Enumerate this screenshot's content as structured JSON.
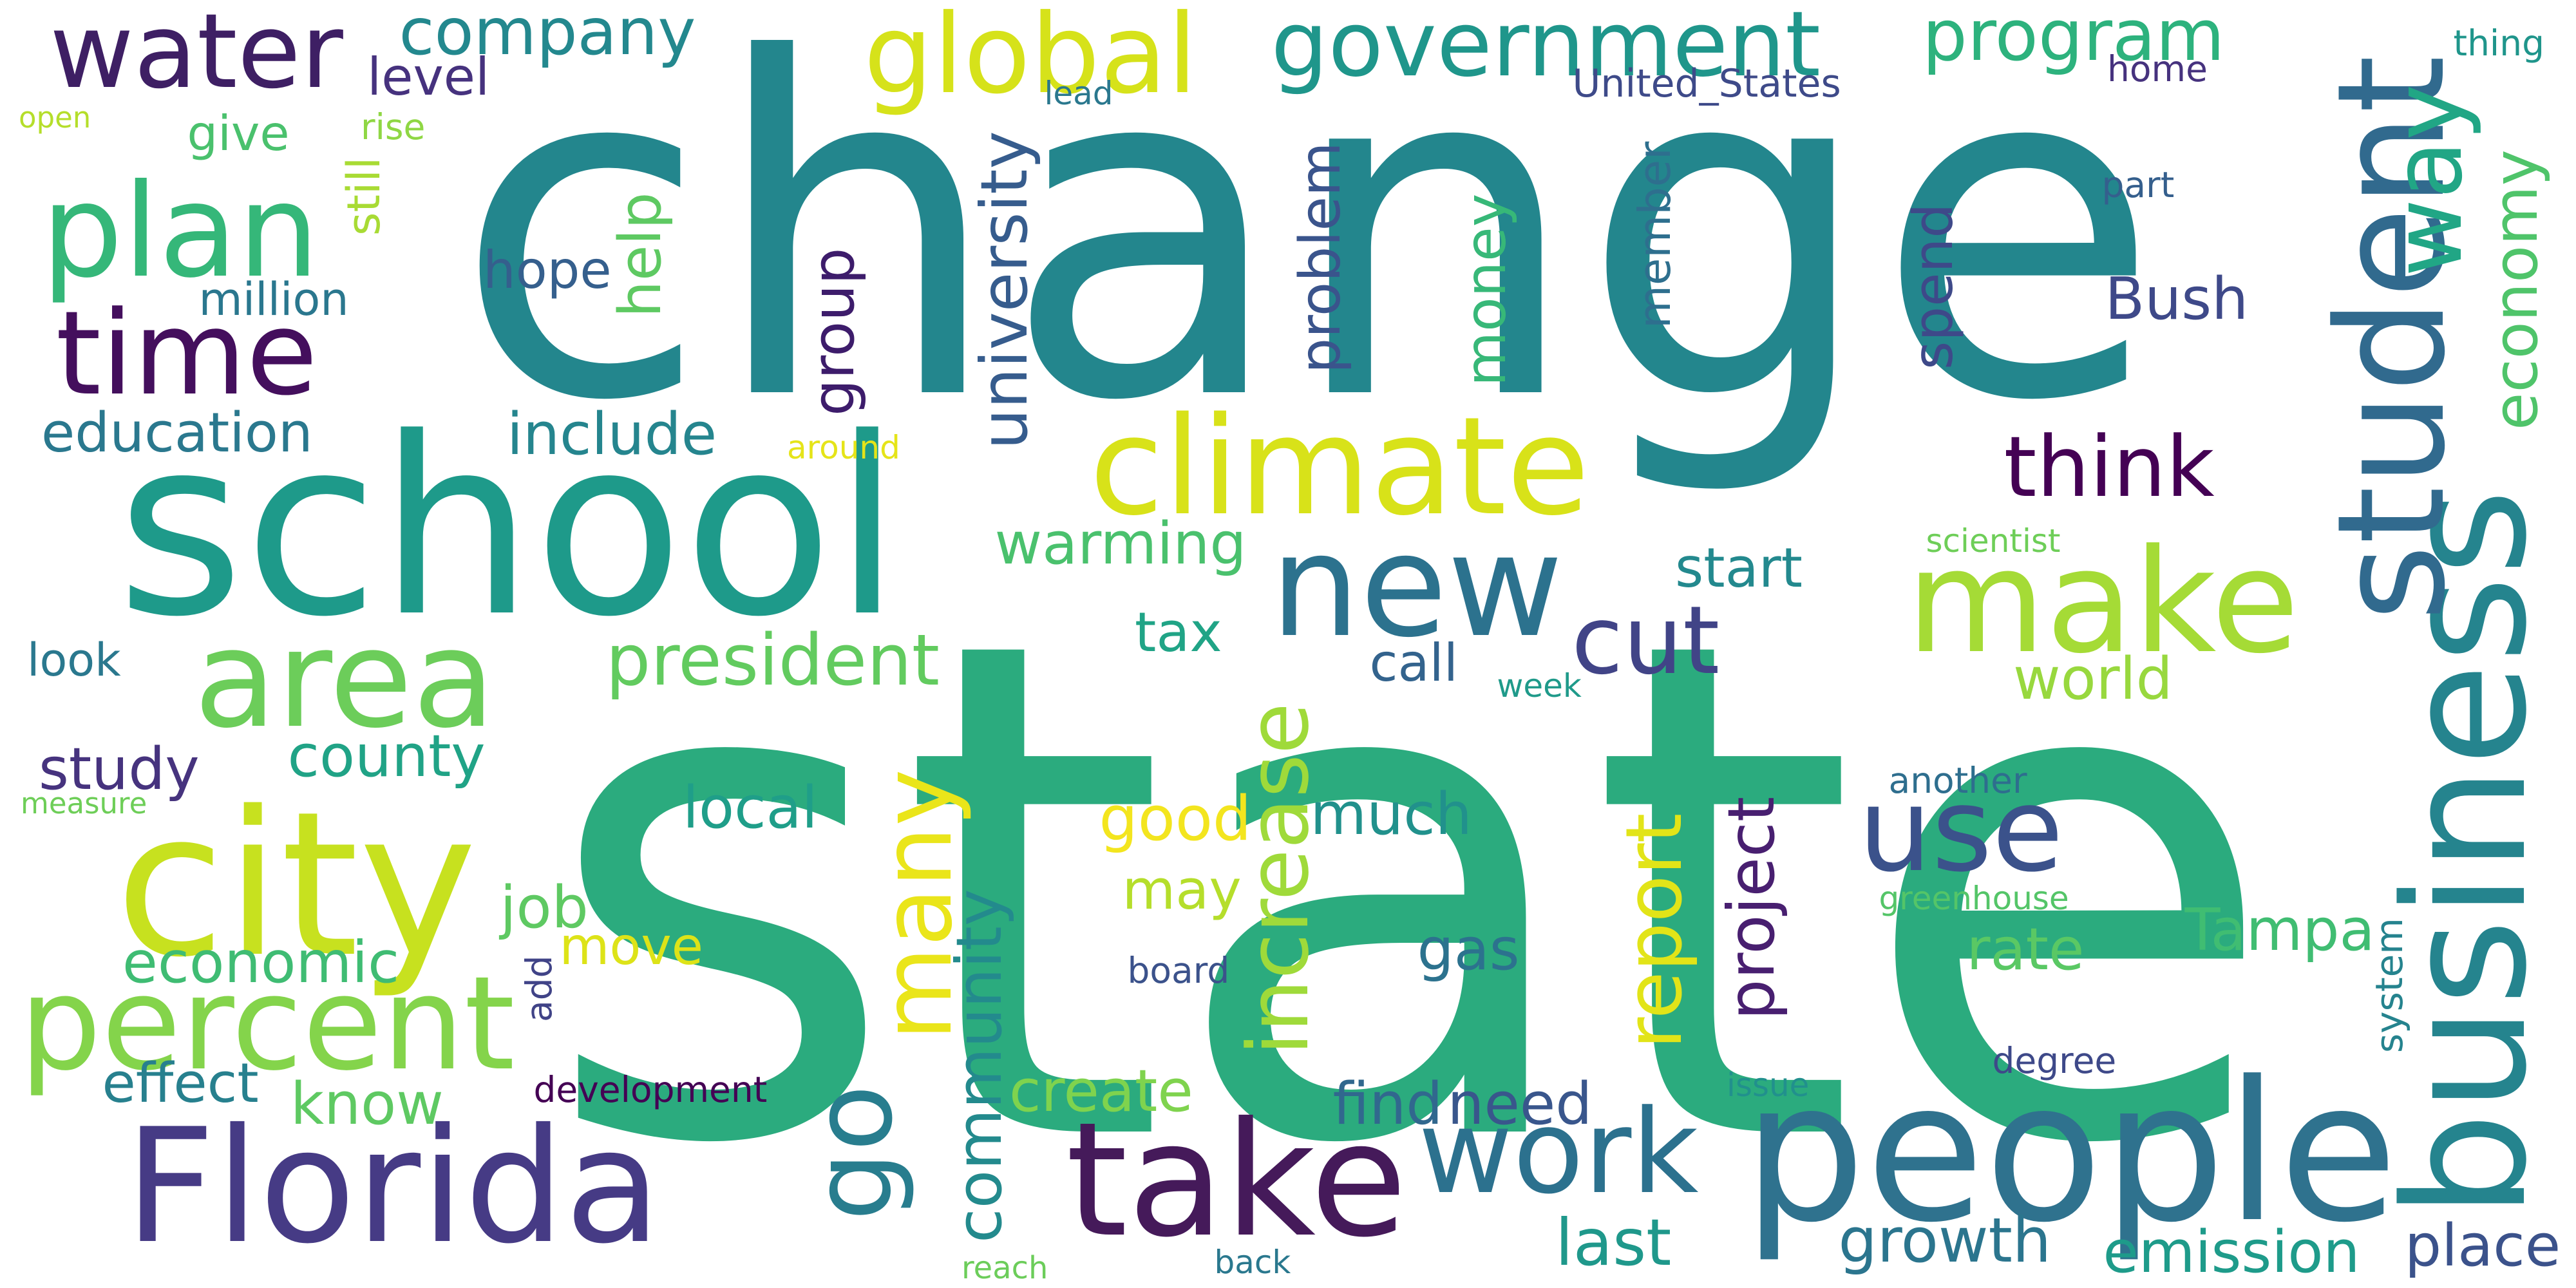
{
  "words": [
    {
      "text": "change",
      "color": "#23868d",
      "rotated": false
    },
    {
      "text": "state",
      "color": "#2bab7e",
      "rotated": false
    },
    {
      "text": "school",
      "color": "#1e9a8a",
      "rotated": false
    },
    {
      "text": "Florida",
      "color": "#463b85",
      "rotated": false
    },
    {
      "text": "people",
      "color": "#2f728e",
      "rotated": false
    },
    {
      "text": "business",
      "color": "#25848e",
      "rotated": true
    },
    {
      "text": "student",
      "color": "#316a8e",
      "rotated": true
    },
    {
      "text": "take",
      "color": "#451a5a",
      "rotated": false
    },
    {
      "text": "city",
      "color": "#c7e11f",
      "rotated": false
    },
    {
      "text": "climate",
      "color": "#d8e219",
      "rotated": false
    },
    {
      "text": "new",
      "color": "#2c728e",
      "rotated": false
    },
    {
      "text": "make",
      "color": "#a5db36",
      "rotated": false
    },
    {
      "text": "area",
      "color": "#6ccd5a",
      "rotated": false
    },
    {
      "text": "percent",
      "color": "#84d44b",
      "rotated": false
    },
    {
      "text": "go",
      "color": "#287d8e",
      "rotated": true
    },
    {
      "text": "many",
      "color": "#eae51a",
      "rotated": true
    },
    {
      "text": "plan",
      "color": "#35b779",
      "rotated": false
    },
    {
      "text": "time",
      "color": "#440f5d",
      "rotated": false
    },
    {
      "text": "water",
      "color": "#3e1f64",
      "rotated": false
    },
    {
      "text": "use",
      "color": "#3b528b",
      "rotated": false
    },
    {
      "text": "work",
      "color": "#2c718e",
      "rotated": false
    },
    {
      "text": "way",
      "color": "#21a685",
      "rotated": true
    },
    {
      "text": "increase",
      "color": "#9fda3a",
      "rotated": true
    },
    {
      "text": "government",
      "color": "#1f968b",
      "rotated": false
    },
    {
      "text": "program",
      "color": "#2db27d",
      "rotated": false
    },
    {
      "text": "global",
      "color": "#d6e21a",
      "rotated": false
    },
    {
      "text": "company",
      "color": "#23888e",
      "rotated": false
    },
    {
      "text": "think",
      "color": "#440154",
      "rotated": false
    },
    {
      "text": "cut",
      "color": "#414487",
      "rotated": false
    },
    {
      "text": "report",
      "color": "#e2e418",
      "rotated": true
    },
    {
      "text": "community",
      "color": "#238a8d",
      "rotated": true
    },
    {
      "text": "president",
      "color": "#62cb5f",
      "rotated": false
    },
    {
      "text": "warming",
      "color": "#4ac16d",
      "rotated": false
    },
    {
      "text": "include",
      "color": "#25858e",
      "rotated": false
    },
    {
      "text": "education",
      "color": "#2a788e",
      "rotated": false
    },
    {
      "text": "university",
      "color": "#365c8d",
      "rotated": true
    },
    {
      "text": "county",
      "color": "#20a386",
      "rotated": false
    },
    {
      "text": "study",
      "color": "#46337e",
      "rotated": false
    },
    {
      "text": "local",
      "color": "#1f9e89",
      "rotated": false
    },
    {
      "text": "job",
      "color": "#5ec962",
      "rotated": false
    },
    {
      "text": "economic",
      "color": "#3fbc73",
      "rotated": false
    },
    {
      "text": "move",
      "color": "#dde318",
      "rotated": false
    },
    {
      "text": "effect",
      "color": "#27808e",
      "rotated": false
    },
    {
      "text": "know",
      "color": "#5ec962",
      "rotated": false
    },
    {
      "text": "create",
      "color": "#7fd34e",
      "rotated": false
    },
    {
      "text": "find",
      "color": "#31688e",
      "rotated": false
    },
    {
      "text": "need",
      "color": "#39568c",
      "rotated": false
    },
    {
      "text": "last",
      "color": "#1f988b",
      "rotated": false
    },
    {
      "text": "growth",
      "color": "#2b758e",
      "rotated": false
    },
    {
      "text": "emission",
      "color": "#1e9b8a",
      "rotated": false
    },
    {
      "text": "place",
      "color": "#3b528b",
      "rotated": false
    },
    {
      "text": "rate",
      "color": "#5ac864",
      "rotated": false
    },
    {
      "text": "Tampa",
      "color": "#40bd72",
      "rotated": false
    },
    {
      "text": "world",
      "color": "#98d83e",
      "rotated": false
    },
    {
      "text": "much",
      "color": "#21918c",
      "rotated": false
    },
    {
      "text": "good",
      "color": "#f3e51e",
      "rotated": false
    },
    {
      "text": "may",
      "color": "#b5de2b",
      "rotated": false
    },
    {
      "text": "gas",
      "color": "#2c728e",
      "rotated": false
    },
    {
      "text": "project",
      "color": "#481f70",
      "rotated": true
    },
    {
      "text": "tax",
      "color": "#20a486",
      "rotated": false
    },
    {
      "text": "call",
      "color": "#33638d",
      "rotated": false
    },
    {
      "text": "start",
      "color": "#23898e",
      "rotated": false
    },
    {
      "text": "Bush",
      "color": "#3e4989",
      "rotated": false
    },
    {
      "text": "problem",
      "color": "#3a548c",
      "rotated": true
    },
    {
      "text": "money",
      "color": "#37b878",
      "rotated": true
    },
    {
      "text": "member",
      "color": "#2e6f8e",
      "rotated": true
    },
    {
      "text": "spend",
      "color": "#3e4989",
      "rotated": true
    },
    {
      "text": "economy",
      "color": "#4fc46a",
      "rotated": true
    },
    {
      "text": "group",
      "color": "#3d1c6b",
      "rotated": true
    },
    {
      "text": "hope",
      "color": "#355f8d",
      "rotated": false
    },
    {
      "text": "help",
      "color": "#5ec962",
      "rotated": true
    },
    {
      "text": "million",
      "color": "#2a778e",
      "rotated": false
    },
    {
      "text": "give",
      "color": "#4ac16d",
      "rotated": false
    },
    {
      "text": "level",
      "color": "#46327e",
      "rotated": false
    },
    {
      "text": "look",
      "color": "#2a788e",
      "rotated": false
    },
    {
      "text": "open",
      "color": "#b5de2b",
      "rotated": false
    },
    {
      "text": "rise",
      "color": "#8fd744",
      "rotated": false
    },
    {
      "text": "still",
      "color": "#a8db34",
      "rotated": true
    },
    {
      "text": "lead",
      "color": "#2a788e",
      "rotated": false
    },
    {
      "text": "United_States",
      "color": "#3e4a89",
      "rotated": false
    },
    {
      "text": "home",
      "color": "#46327e",
      "rotated": false
    },
    {
      "text": "thing",
      "color": "#1f958b",
      "rotated": false
    },
    {
      "text": "part",
      "color": "#355f8d",
      "rotated": false
    },
    {
      "text": "around",
      "color": "#e5e419",
      "rotated": false
    },
    {
      "text": "scientist",
      "color": "#6ece58",
      "rotated": false
    },
    {
      "text": "week",
      "color": "#1f9a8a",
      "rotated": false
    },
    {
      "text": "another",
      "color": "#2e6e8e",
      "rotated": false
    },
    {
      "text": "greenhouse",
      "color": "#54c568",
      "rotated": false
    },
    {
      "text": "measure",
      "color": "#6ece58",
      "rotated": false
    },
    {
      "text": "board",
      "color": "#3b528b",
      "rotated": false
    },
    {
      "text": "add",
      "color": "#404387",
      "rotated": true
    },
    {
      "text": "development",
      "color": "#440154",
      "rotated": false
    },
    {
      "text": "issue",
      "color": "#21908d",
      "rotated": false
    },
    {
      "text": "degree",
      "color": "#3e4989",
      "rotated": false
    },
    {
      "text": "system",
      "color": "#25838e",
      "rotated": true
    },
    {
      "text": "reach",
      "color": "#6ccd5a",
      "rotated": false
    },
    {
      "text": "back",
      "color": "#2a788e",
      "rotated": false
    }
  ]
}
